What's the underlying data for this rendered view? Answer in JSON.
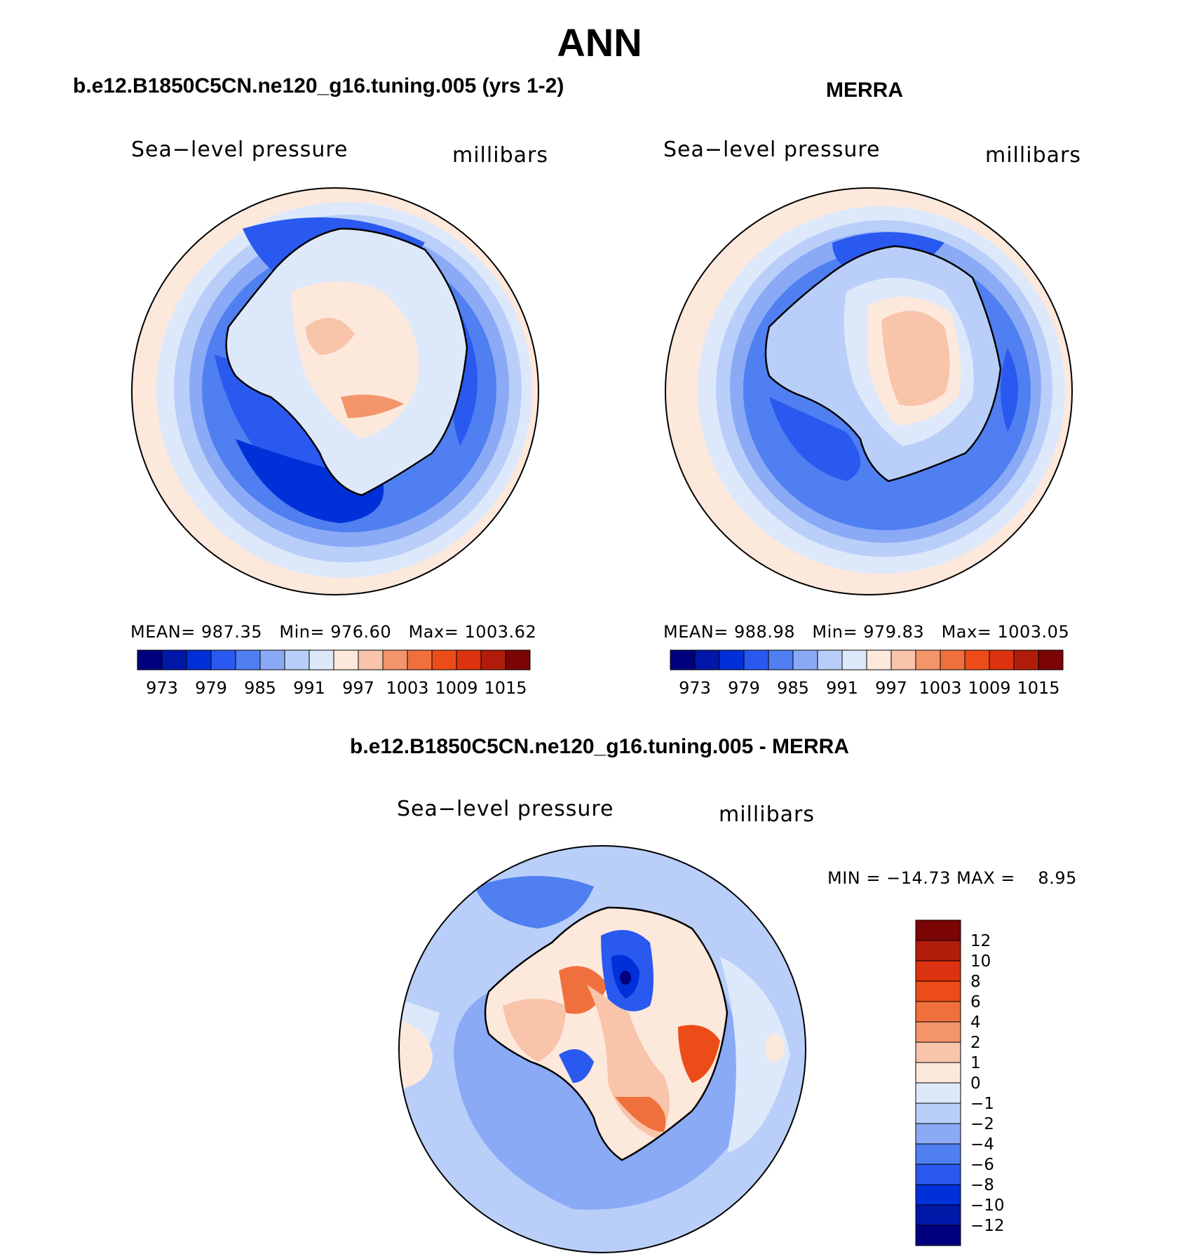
{
  "season": "ANN",
  "colors": {
    "abs_palette": [
      "#00007f",
      "#0018a8",
      "#0030d8",
      "#2a59f0",
      "#4f7ff0",
      "#8aaaf6",
      "#b9cff9",
      "#dde9fb",
      "#fde8dc",
      "#f8c4aa",
      "#f3946a",
      "#f0703d",
      "#ec4c18",
      "#dd3210",
      "#b21d0b",
      "#7b0404"
    ],
    "diff_palette": [
      "#00007f",
      "#0018a8",
      "#0030d8",
      "#2a59f0",
      "#4f7ff0",
      "#8aaaf6",
      "#b9cff9",
      "#dde9fb",
      "#fde8dc",
      "#f8c4aa",
      "#f3946a",
      "#f0703d",
      "#ec4c18",
      "#dd3210",
      "#b21d0b",
      "#7b0404"
    ]
  },
  "panels": [
    {
      "id": "model",
      "case_title": "b.e12.B1850C5CN.ne120_g16.tuning.005 (yrs 1-2)",
      "variable_label": "Sea−level pressure",
      "units_label": "millibars",
      "mean_label": "MEAN=",
      "mean_value": "987.35",
      "min_label": "Min=",
      "min_value": "976.60",
      "max_label": "Max=",
      "max_value": "1003.62",
      "colorbar_ticks": [
        "973",
        "979",
        "985",
        "991",
        "997",
        "1003",
        "1009",
        "1015"
      ]
    },
    {
      "id": "obs",
      "case_title": "MERRA",
      "variable_label": "Sea−level pressure",
      "units_label": "millibars",
      "mean_label": "MEAN=",
      "mean_value": "988.98",
      "min_label": "Min=",
      "min_value": "979.83",
      "max_label": "Max=",
      "max_value": "1003.05",
      "colorbar_ticks": [
        "973",
        "979",
        "985",
        "991",
        "997",
        "1003",
        "1009",
        "1015"
      ]
    }
  ],
  "difference": {
    "case_title": "b.e12.B1850C5CN.ne120_g16.tuning.005 - MERRA",
    "variable_label": "Sea−level pressure",
    "units_label": "millibars",
    "min_label": "MIN =",
    "min_value": "−14.73",
    "max_label": "MAX =",
    "max_value": "8.95",
    "colorbar_ticks": [
      "12",
      "10",
      "8",
      "6",
      "4",
      "2",
      "1",
      "0",
      "−1",
      "−2",
      "−4",
      "−6",
      "−8",
      "−10",
      "−12"
    ]
  },
  "chart_data": [
    {
      "type": "heatmap",
      "projection": "south-polar stereographic",
      "title": "b.e12.B1850C5CN.ne120_g16.tuning.005 (yrs 1-2)",
      "variable": "Sea-level pressure",
      "units": "millibars",
      "mean": 987.35,
      "min": 976.6,
      "max": 1003.62,
      "contour_levels": [
        973,
        976,
        979,
        982,
        985,
        988,
        991,
        994,
        997,
        1000,
        1003,
        1006,
        1009,
        1012,
        1015
      ]
    },
    {
      "type": "heatmap",
      "projection": "south-polar stereographic",
      "title": "MERRA",
      "variable": "Sea-level pressure",
      "units": "millibars",
      "mean": 988.98,
      "min": 979.83,
      "max": 1003.05,
      "contour_levels": [
        973,
        976,
        979,
        982,
        985,
        988,
        991,
        994,
        997,
        1000,
        1003,
        1006,
        1009,
        1012,
        1015
      ]
    },
    {
      "type": "heatmap",
      "projection": "south-polar stereographic",
      "title": "b.e12.B1850C5CN.ne120_g16.tuning.005 - MERRA",
      "variable": "Sea-level pressure",
      "units": "millibars",
      "min": -14.73,
      "max": 8.95,
      "contour_levels": [
        -12,
        -10,
        -8,
        -6,
        -4,
        -2,
        -1,
        0,
        1,
        2,
        4,
        6,
        8,
        10,
        12
      ]
    }
  ]
}
